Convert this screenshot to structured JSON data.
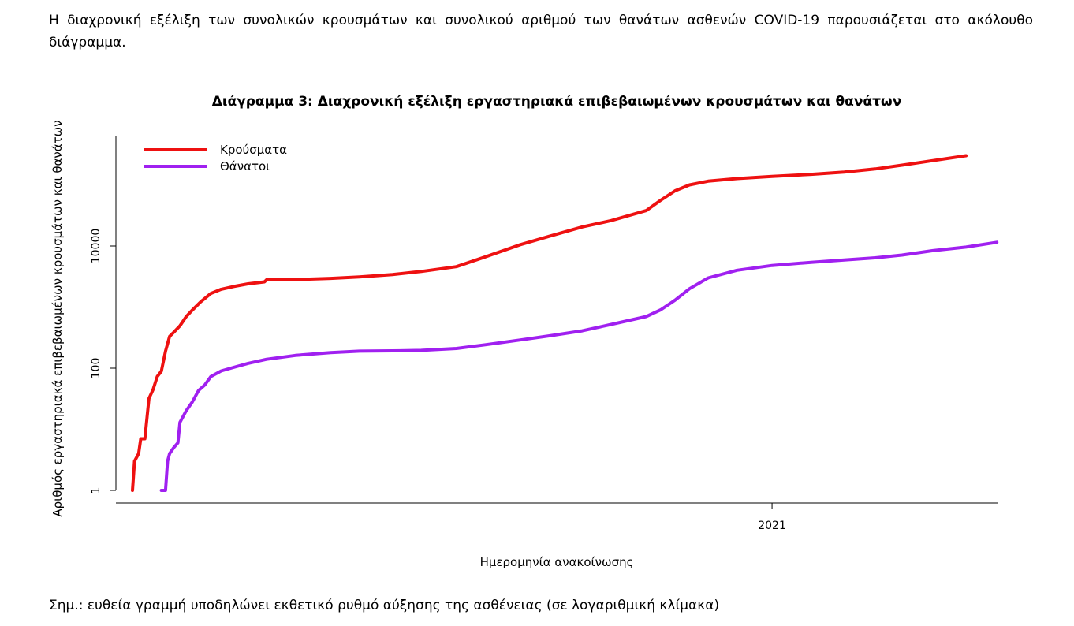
{
  "text": {
    "intro": "Η διαχρονική εξέλιξη των συνολικών κρουσμάτων και συνολικού αριθμού των θανάτων ασθενών COVID-19 παρουσιάζεται στο ακόλουθο διάγραμμα.",
    "note": "Σημ.: ευθεία γραμμή υποδηλώνει εκθετικό ρυθμό αύξησης της ασθένειας (σε λογαριθμική κλίμακα)"
  },
  "chart_data": {
    "type": "line",
    "title": "Διάγραμμα 3: Διαχρονική εξέλιξη εργαστηριακά επιβεβαιωμένων κρουσμάτων και θανάτων",
    "xlabel": "Ημερομηνία ανακοίνωσης",
    "ylabel": "Αριθμός εργαστηριακά επιβεβαιωμένων κρουσμάτων και θανάτων",
    "y_scale": "log",
    "yticks": [
      1,
      100,
      10000
    ],
    "ytick_labels": [
      "1",
      "100",
      "10000"
    ],
    "ylim": [
      1,
      200000
    ],
    "xlim": [
      "2020-02-26",
      "2021-04-05"
    ],
    "xticks": [
      "2021-01-01"
    ],
    "xtick_labels": [
      "2021"
    ],
    "grid": false,
    "legend_position": "top-left",
    "series": [
      {
        "name": "Κρούσματα",
        "color": "#ee1111",
        "points": [
          [
            "2020-02-26",
            1
          ],
          [
            "2020-02-27",
            3
          ],
          [
            "2020-02-29",
            4
          ],
          [
            "2020-03-01",
            7
          ],
          [
            "2020-03-03",
            7
          ],
          [
            "2020-03-05",
            32
          ],
          [
            "2020-03-07",
            45
          ],
          [
            "2020-03-09",
            73
          ],
          [
            "2020-03-11",
            89
          ],
          [
            "2020-03-13",
            190
          ],
          [
            "2020-03-15",
            331
          ],
          [
            "2020-03-17",
            387
          ],
          [
            "2020-03-20",
            495
          ],
          [
            "2020-03-23",
            695
          ],
          [
            "2020-03-26",
            892
          ],
          [
            "2020-03-30",
            1212
          ],
          [
            "2020-04-04",
            1673
          ],
          [
            "2020-04-09",
            1955
          ],
          [
            "2020-04-15",
            2170
          ],
          [
            "2020-04-22",
            2401
          ],
          [
            "2020-04-30",
            2591
          ],
          [
            "2020-05-01",
            2800
          ],
          [
            "2020-05-15",
            2819
          ],
          [
            "2020-06-01",
            2952
          ],
          [
            "2020-06-15",
            3121
          ],
          [
            "2020-07-01",
            3409
          ],
          [
            "2020-07-15",
            3826
          ],
          [
            "2020-08-01",
            4587
          ],
          [
            "2020-08-15",
            6632
          ],
          [
            "2020-09-01",
            10524
          ],
          [
            "2020-09-15",
            14400
          ],
          [
            "2020-10-01",
            20541
          ],
          [
            "2020-10-15",
            26000
          ],
          [
            "2020-11-01",
            38000
          ],
          [
            "2020-11-08",
            56000
          ],
          [
            "2020-11-15",
            80000
          ],
          [
            "2020-11-22",
            100000
          ],
          [
            "2020-12-01",
            115000
          ],
          [
            "2020-12-15",
            127000
          ],
          [
            "2021-01-01",
            138000
          ],
          [
            "2021-01-20",
            149000
          ],
          [
            "2021-02-05",
            162000
          ],
          [
            "2021-02-20",
            182000
          ],
          [
            "2021-03-05",
            210000
          ],
          [
            "2021-03-20",
            250000
          ],
          [
            "2021-04-05",
            300000
          ]
        ]
      },
      {
        "name": "Θάνατοι",
        "color": "#a020f0",
        "points": [
          [
            "2020-03-11",
            1
          ],
          [
            "2020-03-13",
            1
          ],
          [
            "2020-03-14",
            3
          ],
          [
            "2020-03-15",
            4
          ],
          [
            "2020-03-17",
            5
          ],
          [
            "2020-03-19",
            6
          ],
          [
            "2020-03-20",
            13
          ],
          [
            "2020-03-23",
            20
          ],
          [
            "2020-03-26",
            28
          ],
          [
            "2020-03-29",
            43
          ],
          [
            "2020-04-01",
            53
          ],
          [
            "2020-04-04",
            73
          ],
          [
            "2020-04-09",
            90
          ],
          [
            "2020-04-15",
            103
          ],
          [
            "2020-04-22",
            120
          ],
          [
            "2020-05-01",
            140
          ],
          [
            "2020-05-15",
            162
          ],
          [
            "2020-06-01",
            180
          ],
          [
            "2020-06-15",
            190
          ],
          [
            "2020-07-01",
            192
          ],
          [
            "2020-07-15",
            196
          ],
          [
            "2020-08-01",
            210
          ],
          [
            "2020-08-15",
            242
          ],
          [
            "2020-09-01",
            290
          ],
          [
            "2020-09-15",
            338
          ],
          [
            "2020-10-01",
            409
          ],
          [
            "2020-10-15",
            520
          ],
          [
            "2020-11-01",
            700
          ],
          [
            "2020-11-08",
            900
          ],
          [
            "2020-11-15",
            1300
          ],
          [
            "2020-11-22",
            2000
          ],
          [
            "2020-12-01",
            3000
          ],
          [
            "2020-12-15",
            4000
          ],
          [
            "2021-01-01",
            4800
          ],
          [
            "2021-01-20",
            5400
          ],
          [
            "2021-02-05",
            5900
          ],
          [
            "2021-02-20",
            6400
          ],
          [
            "2021-03-05",
            7100
          ],
          [
            "2021-03-20",
            8400
          ],
          [
            "2021-04-05",
            9600
          ],
          [
            "2021-04-20",
            11500
          ]
        ]
      }
    ]
  }
}
